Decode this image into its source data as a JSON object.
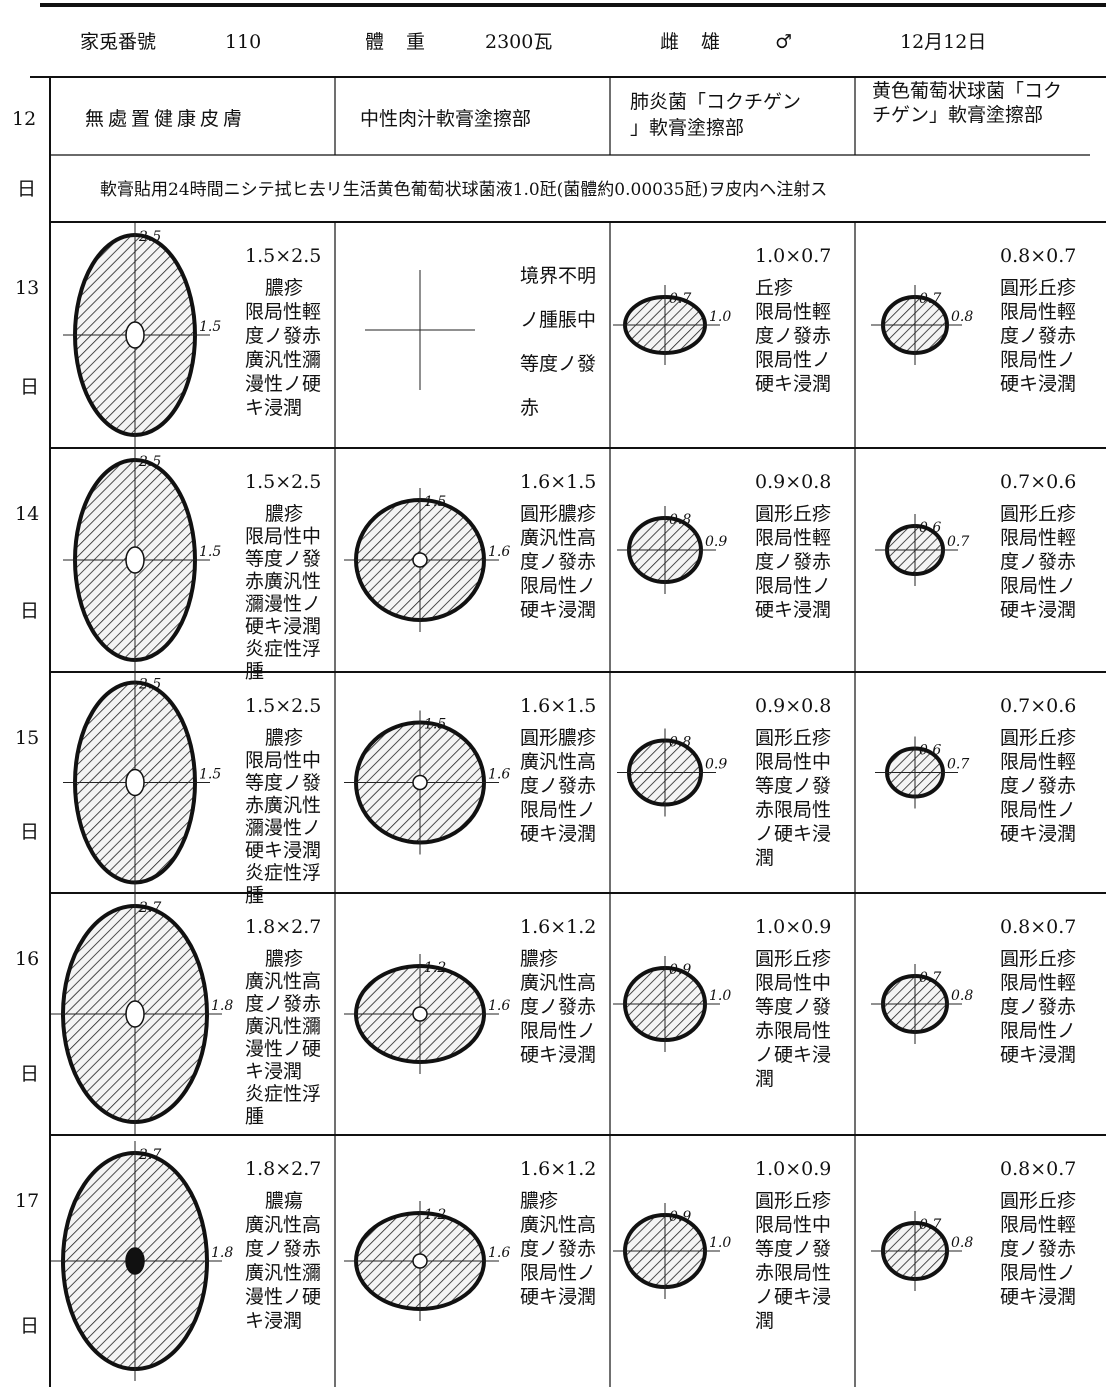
{
  "header": {
    "rabbit_no_label": "家兎番號",
    "rabbit_no": "110",
    "weight_label": "體 重",
    "weight": "2300瓦",
    "sex_label": "雌 雄",
    "sex": "♂",
    "date": "12月12日"
  },
  "columns": [
    "無處置健康皮膚",
    "中性肉汁軟膏塗擦部",
    "肺炎菌「コクチゲン」軟膏塗擦部",
    "黄色葡萄状球菌「コクチゲン」軟膏塗擦部"
  ],
  "day_unit": "日",
  "first_day": "12",
  "note": "軟膏貼用24時間ニシテ拭ヒ去リ生活黄色葡萄状球菌液1.0瓩(菌體約0.00035瓩)ヲ皮内ヘ注射ス",
  "rows": [
    {
      "day": "13",
      "cells": [
        {
          "dims": "1.5×2.5",
          "v": "2.5",
          "h": "1.5",
          "lines": [
            "膿疹",
            "限局性輕",
            "度ノ發赤",
            "廣汎性瀰",
            "漫性ノ硬",
            "キ浸潤"
          ]
        },
        {
          "lines": [
            "境界不明",
            "ノ腫脹中",
            "等度ノ發",
            "赤"
          ]
        },
        {
          "dims": "1.0×0.7",
          "v": "0.7",
          "h": "1.0",
          "lines": [
            "丘疹",
            "限局性輕",
            "度ノ發赤",
            "限局性ノ",
            "硬キ浸潤"
          ]
        },
        {
          "dims": "0.8×0.7",
          "v": "0.7",
          "h": "0.8",
          "lines": [
            "圓形丘疹",
            "限局性輕",
            "度ノ發赤",
            "限局性ノ",
            "硬キ浸潤"
          ]
        }
      ]
    },
    {
      "day": "14",
      "cells": [
        {
          "dims": "1.5×2.5",
          "v": "2.5",
          "h": "1.5",
          "lines": [
            "膿疹",
            "限局性中",
            "等度ノ發",
            "赤廣汎性",
            "瀰漫性ノ",
            "硬キ浸潤",
            "炎症性浮",
            "腫"
          ]
        },
        {
          "dims": "1.6×1.5",
          "v": "1.5",
          "h": "1.6",
          "lines": [
            "圓形膿疹",
            "廣汎性高",
            "度ノ發赤",
            "限局性ノ",
            "硬キ浸潤"
          ]
        },
        {
          "dims": "0.9×0.8",
          "v": "0.8",
          "h": "0.9",
          "lines": [
            "圓形丘疹",
            "限局性輕",
            "度ノ發赤",
            "限局性ノ",
            "硬キ浸潤"
          ]
        },
        {
          "dims": "0.7×0.6",
          "v": "0.6",
          "h": "0.7",
          "lines": [
            "圓形丘疹",
            "限局性輕",
            "度ノ發赤",
            "限局性ノ",
            "硬キ浸潤"
          ]
        }
      ]
    },
    {
      "day": "15",
      "cells": [
        {
          "dims": "1.5×2.5",
          "v": "2.5",
          "h": "1.5",
          "lines": [
            "膿疹",
            "限局性中",
            "等度ノ發",
            "赤廣汎性",
            "瀰漫性ノ",
            "硬キ浸潤",
            "炎症性浮",
            "腫"
          ]
        },
        {
          "dims": "1.6×1.5",
          "v": "1.5",
          "h": "1.6",
          "lines": [
            "圓形膿疹",
            "廣汎性高",
            "度ノ發赤",
            "限局性ノ",
            "硬キ浸潤"
          ]
        },
        {
          "dims": "0.9×0.8",
          "v": "0.8",
          "h": "0.9",
          "lines": [
            "圓形丘疹",
            "限局性中",
            "等度ノ發",
            "赤限局性",
            "ノ硬キ浸",
            "潤"
          ]
        },
        {
          "dims": "0.7×0.6",
          "v": "0.6",
          "h": "0.7",
          "lines": [
            "圓形丘疹",
            "限局性輕",
            "度ノ發赤",
            "限局性ノ",
            "硬キ浸潤"
          ]
        }
      ]
    },
    {
      "day": "16",
      "cells": [
        {
          "dims": "1.8×2.7",
          "v": "2.7",
          "h": "1.8",
          "lines": [
            "膿疹",
            "廣汎性高",
            "度ノ發赤",
            "廣汎性瀰",
            "漫性ノ硬",
            "キ浸潤",
            "炎症性浮",
            "腫"
          ]
        },
        {
          "dims": "1.6×1.2",
          "v": "1.2",
          "h": "1.6",
          "lines": [
            "膿疹",
            "廣汎性高",
            "度ノ發赤",
            "限局性ノ",
            "硬キ浸潤"
          ]
        },
        {
          "dims": "1.0×0.9",
          "v": "0.9",
          "h": "1.0",
          "lines": [
            "圓形丘疹",
            "限局性中",
            "等度ノ發",
            "赤限局性",
            "ノ硬キ浸",
            "潤"
          ]
        },
        {
          "dims": "0.8×0.7",
          "v": "0.7",
          "h": "0.8",
          "lines": [
            "圓形丘疹",
            "限局性輕",
            "度ノ發赤",
            "限局性ノ",
            "硬キ浸潤"
          ]
        }
      ]
    },
    {
      "day": "17",
      "cells": [
        {
          "dims": "1.8×2.7",
          "v": "2.7",
          "h": "1.8",
          "lines": [
            "膿瘍",
            "廣汎性高",
            "度ノ發赤",
            "廣汎性瀰",
            "漫性ノ硬",
            "キ浸潤"
          ]
        },
        {
          "dims": "1.6×1.2",
          "v": "1.2",
          "h": "1.6",
          "lines": [
            "膿疹",
            "廣汎性高",
            "度ノ發赤",
            "限局性ノ",
            "硬キ浸潤"
          ]
        },
        {
          "dims": "1.0×0.9",
          "v": "0.9",
          "h": "1.0",
          "lines": [
            "圓形丘疹",
            "限局性中",
            "等度ノ發",
            "赤限局性",
            "ノ硬キ浸",
            "潤"
          ]
        },
        {
          "dims": "0.8×0.7",
          "v": "0.7",
          "h": "0.8",
          "lines": [
            "圓形丘疹",
            "限局性輕",
            "度ノ發赤",
            "限局性ノ",
            "硬キ浸潤"
          ]
        }
      ]
    }
  ]
}
